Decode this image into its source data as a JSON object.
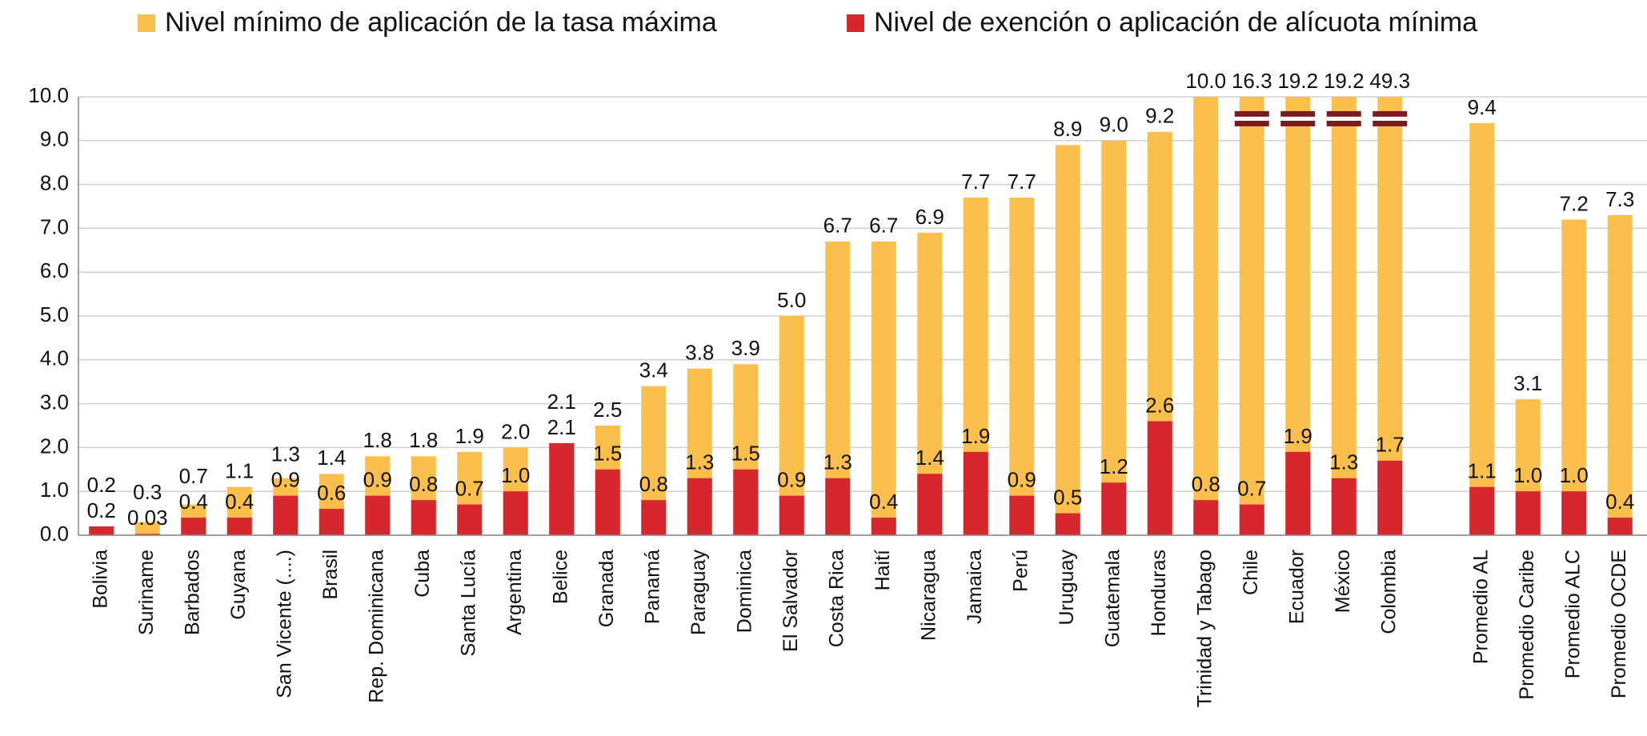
{
  "chart_data": {
    "type": "bar",
    "categories": [
      "Bolivia",
      "Suriname",
      "Barbados",
      "Guyana",
      "San Vicente (....)",
      "Brasil",
      "Rep. Dominicana",
      "Cuba",
      "Santa Lucía",
      "Argentina",
      "Belice",
      "Granada",
      "Panamá",
      "Paraguay",
      "Dominica",
      "El Salvador",
      "Costa Rica",
      "Haití",
      "Nicaragua",
      "Jamaica",
      "Perú",
      "Uruguay",
      "Guatemala",
      "Honduras",
      "Trinidad y Tabago",
      "Chile",
      "Ecuador",
      "México",
      "Colombia",
      null,
      "Promedio AL",
      "Promedio Caribe",
      "Promedio ALC",
      "Promedio OCDE"
    ],
    "series": [
      {
        "name": "Nivel mínimo de aplicación de la tasa máxima",
        "color": "#fdbf4c",
        "values": [
          0.2,
          0.3,
          0.7,
          1.1,
          1.3,
          1.4,
          1.8,
          1.8,
          1.9,
          2.0,
          2.1,
          2.5,
          3.4,
          3.8,
          3.9,
          5.0,
          6.7,
          6.7,
          6.9,
          7.7,
          7.7,
          8.9,
          9.0,
          9.2,
          10.0,
          16.3,
          19.2,
          19.2,
          49.3,
          null,
          9.4,
          3.1,
          7.2,
          7.3
        ],
        "value_labels": [
          "0.2",
          "0.3",
          "0.7",
          "1.1",
          "1.3",
          "1.4",
          "1.8",
          "1.8",
          "1.9",
          "2.0",
          "2.1",
          "2.5",
          "3.4",
          "3.8",
          "3.9",
          "5.0",
          "6.7",
          "6.7",
          "6.9",
          "7.7",
          "7.7",
          "8.9",
          "9.0",
          "9.2",
          "10.0",
          "16.3",
          "19.2",
          "19.2",
          "49.3",
          null,
          "9.4",
          "3.1",
          "7.2",
          "7.3"
        ]
      },
      {
        "name": "Nivel de exención o aplicación de alícuota mínima",
        "color": "#d7262d",
        "values": [
          0.2,
          0.03,
          0.4,
          0.4,
          0.9,
          0.6,
          0.9,
          0.8,
          0.7,
          1.0,
          2.1,
          1.5,
          0.8,
          1.3,
          1.5,
          0.9,
          1.3,
          0.4,
          1.4,
          1.9,
          0.9,
          0.5,
          1.2,
          2.6,
          0.8,
          0.7,
          1.9,
          1.3,
          1.7,
          null,
          1.1,
          1.0,
          1.0,
          0.4
        ],
        "value_labels": [
          "0.2",
          "0.03",
          "0.4",
          "0.4",
          "0.9",
          "0.6",
          "0.9",
          "0.8",
          "0.7",
          "1.0",
          "2.1",
          "1.5",
          "0.8",
          "1.3",
          "1.5",
          "0.9",
          "1.3",
          "0.4",
          "1.4",
          "1.9",
          "0.9",
          "0.5",
          "1.2",
          "2.6",
          "0.8",
          "0.7",
          "1.9",
          "1.3",
          "1.7",
          null,
          "1.1",
          "1.0",
          "1.0",
          "0.4"
        ]
      }
    ],
    "ylim": [
      0,
      10
    ],
    "yticks": [
      {
        "value": 0,
        "label": "0.0"
      },
      {
        "value": 1,
        "label": "1.0"
      },
      {
        "value": 2,
        "label": "2.0"
      },
      {
        "value": 3,
        "label": "3.0"
      },
      {
        "value": 4,
        "label": "4.0"
      },
      {
        "value": 5,
        "label": "5.0"
      },
      {
        "value": 6,
        "label": "6.0"
      },
      {
        "value": 7,
        "label": "7.0"
      },
      {
        "value": 8,
        "label": "8.0"
      },
      {
        "value": 9,
        "label": "9.0"
      },
      {
        "value": 10,
        "label": "10.0"
      }
    ],
    "grid": true,
    "legend": "top"
  }
}
